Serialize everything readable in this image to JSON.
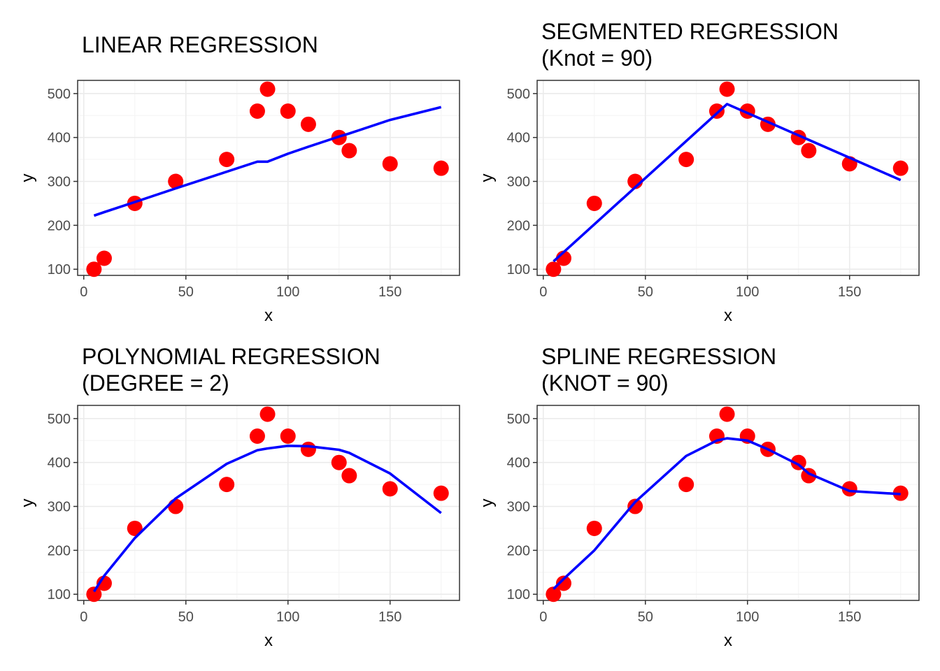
{
  "colors": {
    "point": "#ff0000",
    "fit_line": "#0000ff",
    "grid_major": "#ebebeb",
    "grid_minor": "#f5f5f5",
    "panel_border": "#333333",
    "tick_text": "#4d4d4d"
  },
  "chart_data": [
    {
      "type": "scatter",
      "title_lines": [
        "LINEAR REGRESSION"
      ],
      "xlabel": "x",
      "ylabel": "y",
      "xlim": [
        -3,
        184
      ],
      "ylim": [
        86,
        530
      ],
      "x_ticks": [
        0,
        50,
        100,
        150
      ],
      "y_ticks": [
        100,
        200,
        300,
        400,
        500
      ],
      "grid": true,
      "points": {
        "x": [
          5,
          10,
          25,
          45,
          70,
          85,
          90,
          100,
          110,
          125,
          130,
          150,
          175
        ],
        "y": [
          100,
          125,
          250,
          300,
          350,
          460,
          510,
          460,
          430,
          400,
          370,
          340,
          330
        ]
      },
      "fit": {
        "x": [
          5,
          10,
          25,
          45,
          70,
          85,
          90,
          100,
          110,
          125,
          130,
          150,
          175
        ],
        "y": [
          222,
          230,
          253,
          284,
          322,
          345,
          345,
          363,
          379,
          402,
          409,
          440,
          469
        ]
      }
    },
    {
      "type": "scatter",
      "title_lines": [
        "SEGMENTED REGRESSION",
        "(Knot = 90)"
      ],
      "xlabel": "x",
      "ylabel": "y",
      "xlim": [
        -3,
        184
      ],
      "ylim": [
        86,
        530
      ],
      "x_ticks": [
        0,
        50,
        100,
        150
      ],
      "y_ticks": [
        100,
        200,
        300,
        400,
        500
      ],
      "grid": true,
      "points": {
        "x": [
          5,
          10,
          25,
          45,
          70,
          85,
          90,
          100,
          110,
          125,
          130,
          150,
          175
        ],
        "y": [
          100,
          125,
          250,
          300,
          350,
          460,
          510,
          460,
          430,
          400,
          370,
          340,
          330
        ]
      },
      "fit": {
        "x": [
          5,
          90,
          175
        ],
        "y": [
          118,
          476,
          303
        ]
      }
    },
    {
      "type": "scatter",
      "title_lines": [
        "POLYNOMIAL REGRESSION",
        "(DEGREE = 2)"
      ],
      "xlabel": "x",
      "ylabel": "y",
      "xlim": [
        -3,
        184
      ],
      "ylim": [
        86,
        530
      ],
      "x_ticks": [
        0,
        50,
        100,
        150
      ],
      "y_ticks": [
        100,
        200,
        300,
        400,
        500
      ],
      "grid": true,
      "points": {
        "x": [
          5,
          10,
          25,
          45,
          70,
          85,
          90,
          100,
          110,
          125,
          130,
          150,
          175
        ],
        "y": [
          100,
          125,
          250,
          300,
          350,
          460,
          510,
          460,
          430,
          400,
          370,
          340,
          330
        ]
      },
      "fit": {
        "x": [
          5,
          10,
          25,
          45,
          70,
          85,
          90,
          100,
          110,
          125,
          130,
          150,
          175
        ],
        "y": [
          106,
          142,
          228,
          318,
          397,
          428,
          432,
          438,
          437,
          429,
          422,
          375,
          285
        ]
      }
    },
    {
      "type": "scatter",
      "title_lines": [
        "SPLINE REGRESSION",
        "(KNOT = 90)"
      ],
      "xlabel": "x",
      "ylabel": "y",
      "xlim": [
        -3,
        184
      ],
      "ylim": [
        86,
        530
      ],
      "x_ticks": [
        0,
        50,
        100,
        150
      ],
      "y_ticks": [
        100,
        200,
        300,
        400,
        500
      ],
      "grid": true,
      "points": {
        "x": [
          5,
          10,
          25,
          45,
          70,
          85,
          90,
          100,
          110,
          125,
          130,
          150,
          175
        ],
        "y": [
          100,
          125,
          250,
          300,
          350,
          460,
          510,
          460,
          430,
          400,
          370,
          340,
          330
        ]
      },
      "fit": {
        "x": [
          5,
          10,
          25,
          45,
          70,
          85,
          90,
          100,
          110,
          125,
          130,
          150,
          175
        ],
        "y": [
          112,
          135,
          200,
          310,
          415,
          450,
          455,
          450,
          430,
          395,
          375,
          335,
          328
        ]
      }
    }
  ]
}
